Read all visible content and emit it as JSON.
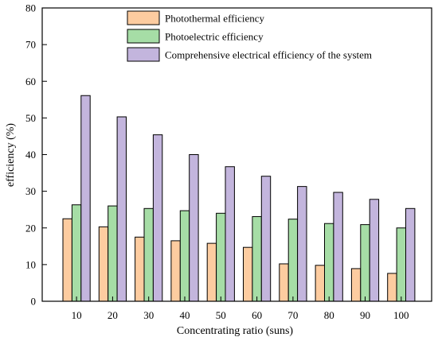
{
  "chart_data": {
    "type": "bar",
    "xlabel": "Concentrating ratio (suns)",
    "ylabel": "efficiency (%)",
    "ylim": [
      0,
      80
    ],
    "yticks": [
      0,
      10,
      20,
      30,
      40,
      50,
      60,
      70,
      80
    ],
    "legend_position": "top-right",
    "grid": false,
    "categories": [
      "10",
      "20",
      "30",
      "40",
      "50",
      "60",
      "70",
      "80",
      "90",
      "100"
    ],
    "series": [
      {
        "name": "Photothermal efficiency",
        "color": "#fdcca0",
        "values": [
          22.5,
          20.3,
          17.5,
          16.5,
          15.8,
          14.7,
          10.2,
          9.8,
          8.9,
          7.6
        ]
      },
      {
        "name": "Photoelectric efficiency",
        "color": "#a6dda6",
        "values": [
          26.3,
          26.0,
          25.3,
          24.7,
          24.0,
          23.1,
          22.4,
          21.2,
          20.9,
          20.0
        ]
      },
      {
        "name": "Comprehensive electrical efficiency of the system",
        "color": "#c3b5dd",
        "values": [
          56.1,
          50.3,
          45.4,
          40.0,
          36.7,
          34.1,
          31.3,
          29.7,
          27.8,
          25.3
        ]
      }
    ]
  }
}
